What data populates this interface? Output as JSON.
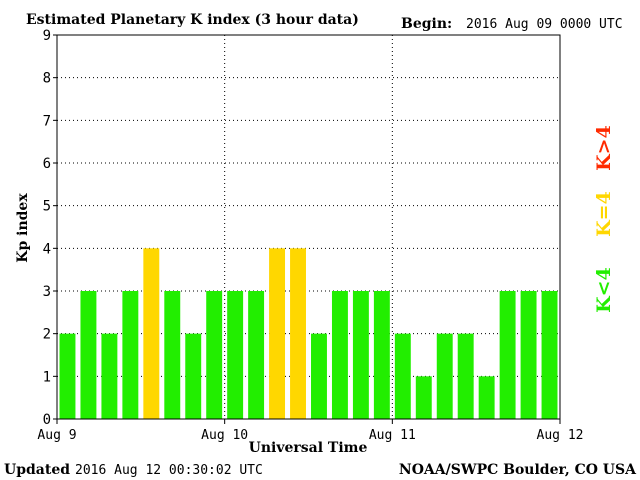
{
  "header": {
    "title": "Estimated Planetary K index (3 hour data)",
    "begin_label": "Begin:",
    "begin_value": "2016 Aug 09 0000 UTC"
  },
  "footer": {
    "updated_label": "Updated",
    "updated_value": "2016 Aug 12 00:30:02 UTC",
    "source": "NOAA/SWPC Boulder, CO USA"
  },
  "legend": [
    {
      "label": "K>4",
      "color": "#ff2a00"
    },
    {
      "label": "K=4",
      "color": "#ffd700"
    },
    {
      "label": "K<4",
      "color": "#22ee00"
    }
  ],
  "chart_data": {
    "type": "bar",
    "title": "Estimated Planetary K index (3 hour data)",
    "xlabel": "Universal Time",
    "ylabel": "Kp index",
    "ylim": [
      0,
      9
    ],
    "yticks": [
      "0",
      "1",
      "2",
      "3",
      "4",
      "5",
      "6",
      "7",
      "8",
      "9"
    ],
    "xticks": [
      "Aug 9",
      "Aug 10",
      "Aug 11",
      "Aug 12"
    ],
    "grid": true,
    "bins_per_day": 8,
    "values": [
      2,
      3,
      2,
      3,
      4,
      3,
      2,
      3,
      3,
      3,
      4,
      4,
      2,
      3,
      3,
      3,
      2,
      1,
      2,
      2,
      1,
      3,
      3,
      3
    ],
    "colors": {
      "below4": "#22ee00",
      "equal4": "#ffd700",
      "above4": "#ff2a00"
    }
  }
}
